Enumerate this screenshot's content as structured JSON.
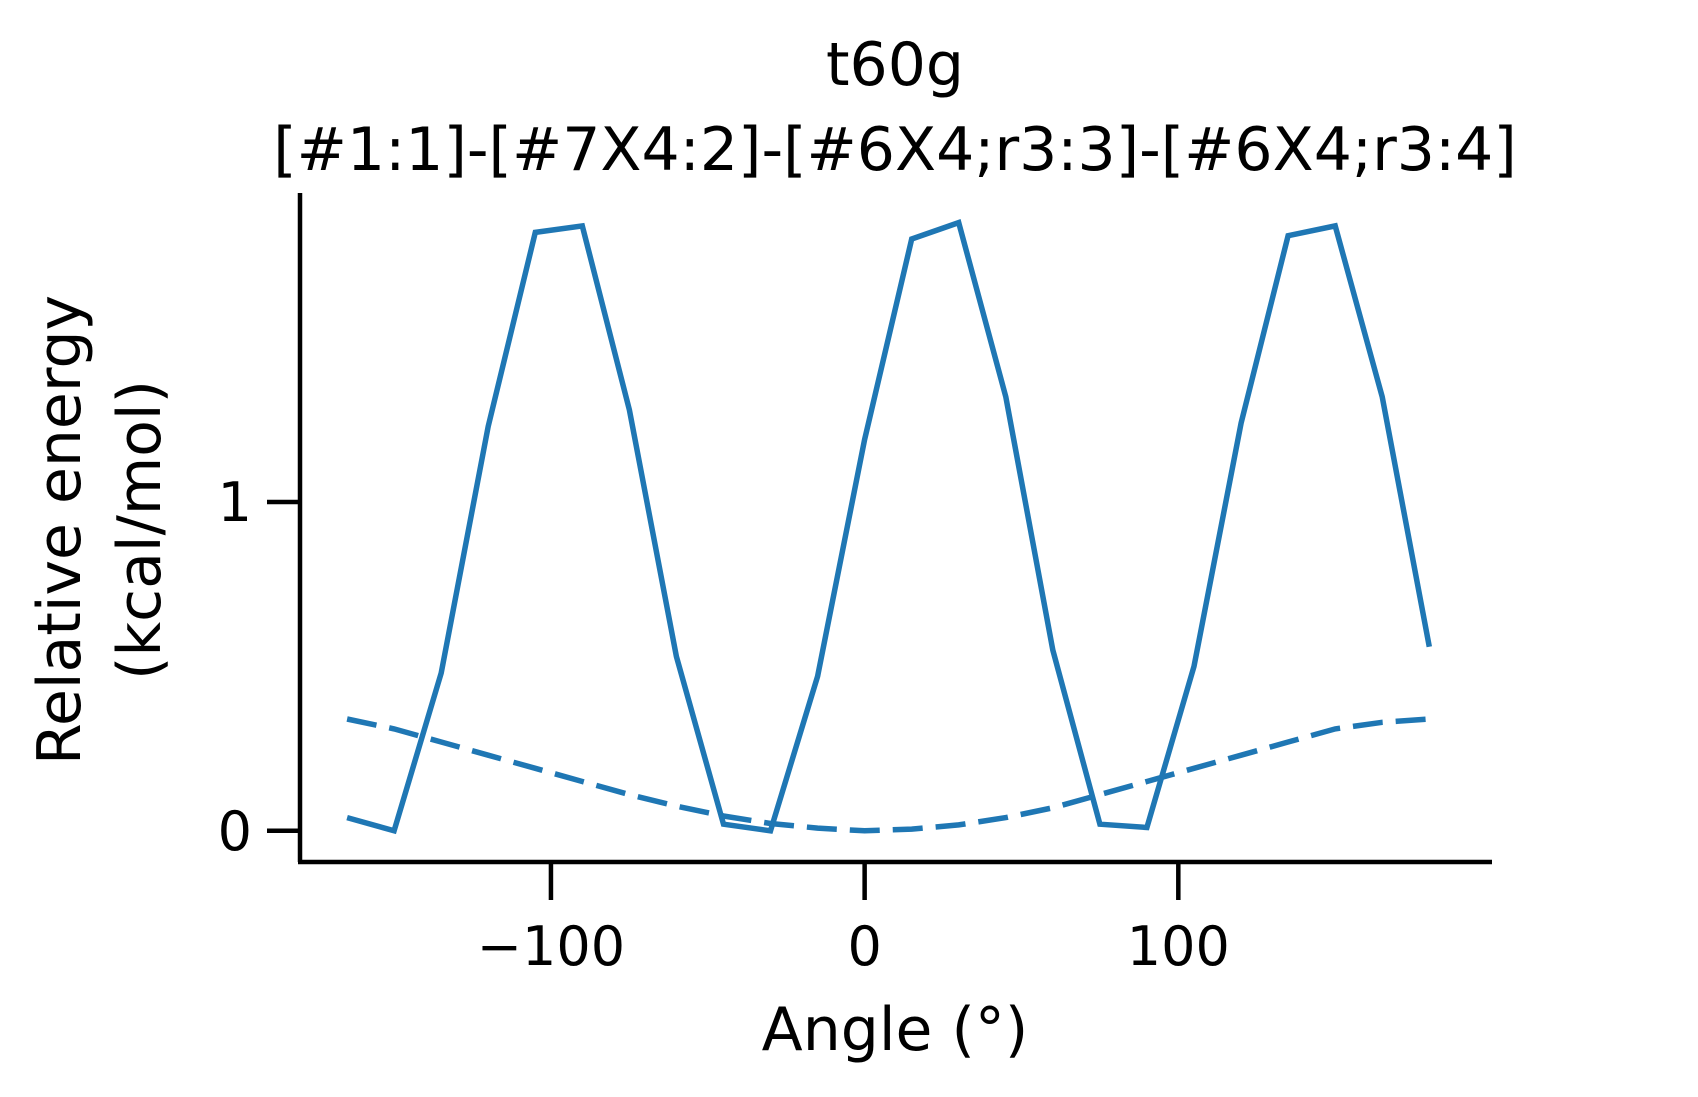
{
  "chart_data": {
    "type": "line",
    "title_lines": [
      "t60g",
      "[#1:1]-[#7X4:2]-[#6X4;r3:3]-[#6X4;r3:4]"
    ],
    "xlabel": "Angle (°)",
    "ylabel_lines": [
      "Relative energy",
      "(kcal/mol)"
    ],
    "xlim": [
      -180,
      200
    ],
    "ylim": [
      -0.095,
      1.94
    ],
    "xticks": [
      -100,
      0,
      100
    ],
    "xtick_labels": [
      "−100",
      "0",
      "100"
    ],
    "yticks": [
      0,
      1
    ],
    "ytick_labels": [
      "0",
      "1"
    ],
    "grid": false,
    "series": [
      {
        "style": "solid",
        "color": "#1f77b4",
        "x": [
          -165,
          -150,
          -135,
          -120,
          -105,
          -90,
          -75,
          -60,
          -45,
          -30,
          -15,
          0,
          15,
          30,
          45,
          60,
          75,
          90,
          105,
          120,
          135,
          150,
          165,
          180
        ],
        "y": [
          0.04,
          0.0,
          0.48,
          1.23,
          1.82,
          1.84,
          1.28,
          0.53,
          0.02,
          0.0,
          0.47,
          1.19,
          1.8,
          1.85,
          1.32,
          0.55,
          0.02,
          0.01,
          0.5,
          1.24,
          1.81,
          1.84,
          1.32,
          0.56
        ]
      },
      {
        "style": "dashed",
        "color": "#1f77b4",
        "x": [
          -165,
          -150,
          -135,
          -120,
          -105,
          -90,
          -75,
          -60,
          -45,
          -30,
          -15,
          0,
          15,
          30,
          45,
          60,
          75,
          90,
          105,
          120,
          135,
          150,
          165,
          180
        ],
        "y": [
          0.34,
          0.31,
          0.27,
          0.23,
          0.19,
          0.15,
          0.11,
          0.075,
          0.045,
          0.022,
          0.008,
          0.0,
          0.005,
          0.018,
          0.04,
          0.07,
          0.11,
          0.15,
          0.19,
          0.23,
          0.27,
          0.31,
          0.33,
          0.34
        ]
      }
    ]
  }
}
